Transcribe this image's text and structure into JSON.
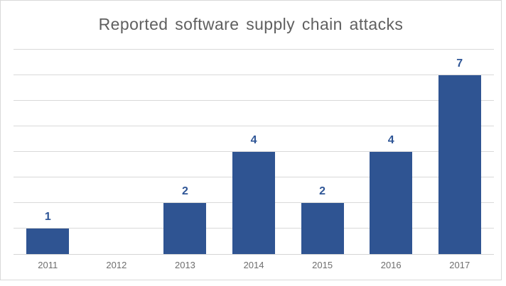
{
  "chart_data": {
    "type": "bar",
    "title": "Reported software supply chain attacks",
    "categories": [
      "2011",
      "2012",
      "2013",
      "2014",
      "2015",
      "2016",
      "2017"
    ],
    "values": [
      1,
      0,
      2,
      4,
      2,
      4,
      7
    ],
    "xlabel": "",
    "ylabel": "",
    "ylim": [
      0,
      8
    ],
    "gridline_step": 1,
    "grid": true,
    "legend_position": "none",
    "show_data_labels": true,
    "zero_value_labels_hidden": true,
    "y_axis_tick_labels_visible": false,
    "colors": {
      "bar": "#2F5492",
      "data_label": "#2E5596",
      "title": "#5F5F5F",
      "axis_label": "#6E6E6E",
      "gridline": "#D9D9D9",
      "axis_line": "#D6D6D6",
      "frame_border": "#D9D9D9",
      "background": "#FFFFFF"
    }
  }
}
